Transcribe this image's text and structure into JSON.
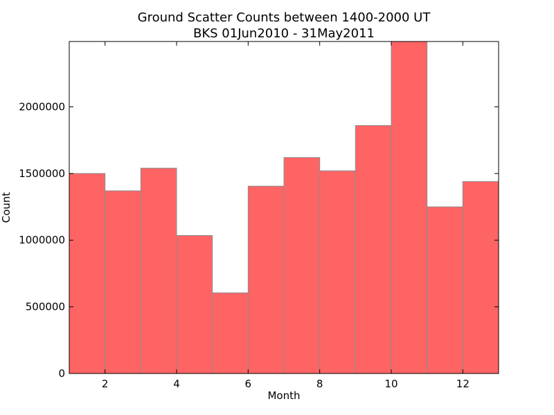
{
  "chart_data": {
    "type": "bar",
    "title": "Ground Scatter Counts between 1400-2000 UT",
    "subtitle": "BKS 01Jun2010 - 31May2011",
    "xlabel": "Month",
    "ylabel": "Count",
    "bin_edges": [
      1,
      2,
      3,
      4,
      5,
      6,
      7,
      8,
      9,
      10,
      11,
      12,
      13
    ],
    "values": [
      1500000,
      1370000,
      1540000,
      1035000,
      605000,
      1405000,
      1620000,
      1520000,
      1860000,
      2490000,
      1250000,
      1440000
    ],
    "xlim": [
      1,
      13
    ],
    "ylim": [
      0,
      2490000
    ],
    "xticks": [
      2,
      4,
      6,
      8,
      10,
      12
    ],
    "yticks": [
      0,
      500000,
      1000000,
      1500000,
      2000000
    ],
    "bar_color": "#ff6464",
    "bar_edge_color": "#8c8c8c",
    "grid": false
  }
}
